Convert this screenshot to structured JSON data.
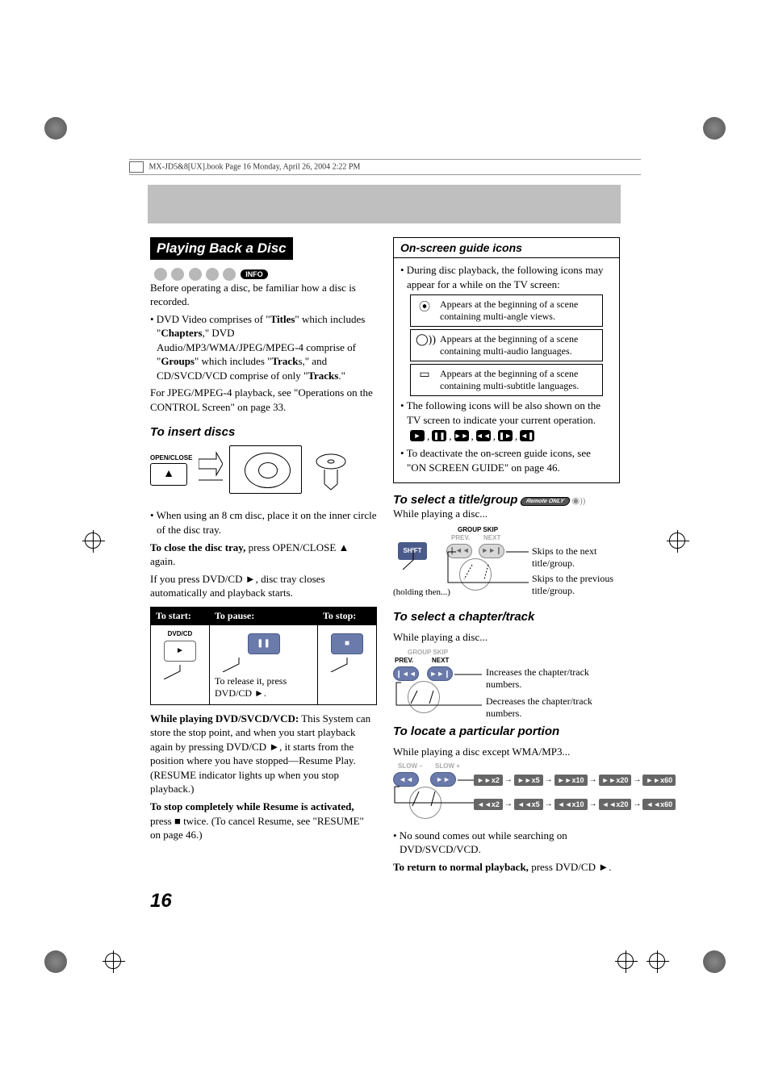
{
  "header": {
    "text": "MX-JD5&8[UX].book  Page 16  Monday, April 26, 2004  2:22 PM"
  },
  "page_number": "16",
  "left": {
    "title": "Playing Back a Disc",
    "info_badge": "INFO",
    "intro": "Before operating a disc, be familiar how a disc is recorded.",
    "bullet1_a": "• DVD Video comprises of \"",
    "bullet1_titles": "Titles",
    "bullet1_b": "\" which includes \"",
    "bullet1_chapters": "Chapters",
    "bullet1_c": ",\" DVD Audio/MP3/WMA/JPEG/MPEG-4 comprise of \"",
    "bullet1_groups": "Groups",
    "bullet1_d": "\" which includes \"",
    "bullet1_tracks": "Track",
    "bullet1_e": "s,\" and CD/SVCD/VCD comprise of only \"",
    "bullet1_tracks2": "Tracks",
    "bullet1_f": ".\"",
    "jpeg_note": "For JPEG/MPEG-4 playback, see \"Operations on the CONTROL Screen\" on page 33.",
    "insert_heading": "To insert discs",
    "open_close_label": "OPEN/CLOSE",
    "bullet_8cm": "• When using an 8 cm disc, place it on the inner circle of the disc tray.",
    "close_tray_a": "To close the disc tray,",
    "close_tray_b": " press OPEN/CLOSE ",
    "close_tray_c": " again.",
    "press_dvd": "If you press DVD/CD ►, disc tray closes automatically and playback starts.",
    "table": {
      "h1": "To start:",
      "h2": "To pause:",
      "h3": "To stop:",
      "dvd_label": "DVD/CD",
      "release": "To release it, press DVD/CD ►."
    },
    "resume_a": "While playing DVD/SVCD/VCD:",
    "resume_b": " This System can store the stop point, and when you start playback again by pressing DVD/CD ►, it starts from the position where you have stopped—Resume Play. (RESUME indicator lights up when you stop playback.)",
    "stop_a": "To stop completely while Resume is activated,",
    "stop_b": " press ■ twice. (To cancel Resume, see \"RESUME\" on page 46.)"
  },
  "right": {
    "guide_title": "On-screen guide icons",
    "guide_intro": "• During disc playback, the following icons may appear for a while on the TV screen:",
    "icon1": "Appears at the beginning of a scene containing multi-angle views.",
    "icon2": "Appears at the beginning of a scene containing multi-audio languages.",
    "icon3": "Appears at the beginning of a scene containing multi-subtitle languages.",
    "guide_tv": "• The following icons will be also shown on the TV screen to indicate your current operation.",
    "guide_deactivate": "• To deactivate the on-screen guide icons, see \"ON SCREEN GUIDE\" on page 46.",
    "select_title_heading": "To select a title/group",
    "remote_only": "Remote ONLY",
    "while_playing": "While playing a disc...",
    "group_skip_label": "GROUP SKIP",
    "prev_label": "PREV.",
    "next_label": "NEXT",
    "shift_label": "SHIFT",
    "holding": "(holding then...)",
    "skip_next": "Skips to the next title/group.",
    "skip_prev": "Skips to the previous title/group.",
    "select_chapter_heading": "To select a chapter/track",
    "while_playing2": "While playing a disc...",
    "inc_chapter": "Increases the chapter/track numbers.",
    "dec_chapter": "Decreases the chapter/track numbers.",
    "locate_heading": "To locate a particular portion",
    "while_playing3": "While playing a disc except WMA/MP3...",
    "slow_minus": "SLOW –",
    "slow_plus": "SLOW +",
    "ff_speeds": [
      "►►x2",
      "►►x5",
      "►►x10",
      "►►x20",
      "►►x60"
    ],
    "rw_speeds": [
      "◄◄x2",
      "◄◄x5",
      "◄◄x10",
      "◄◄x20",
      "◄◄x60"
    ],
    "no_sound": "• No sound comes out while searching on DVD/SVCD/VCD.",
    "return_a": "To return to normal playback,",
    "return_b": " press DVD/CD ►."
  }
}
